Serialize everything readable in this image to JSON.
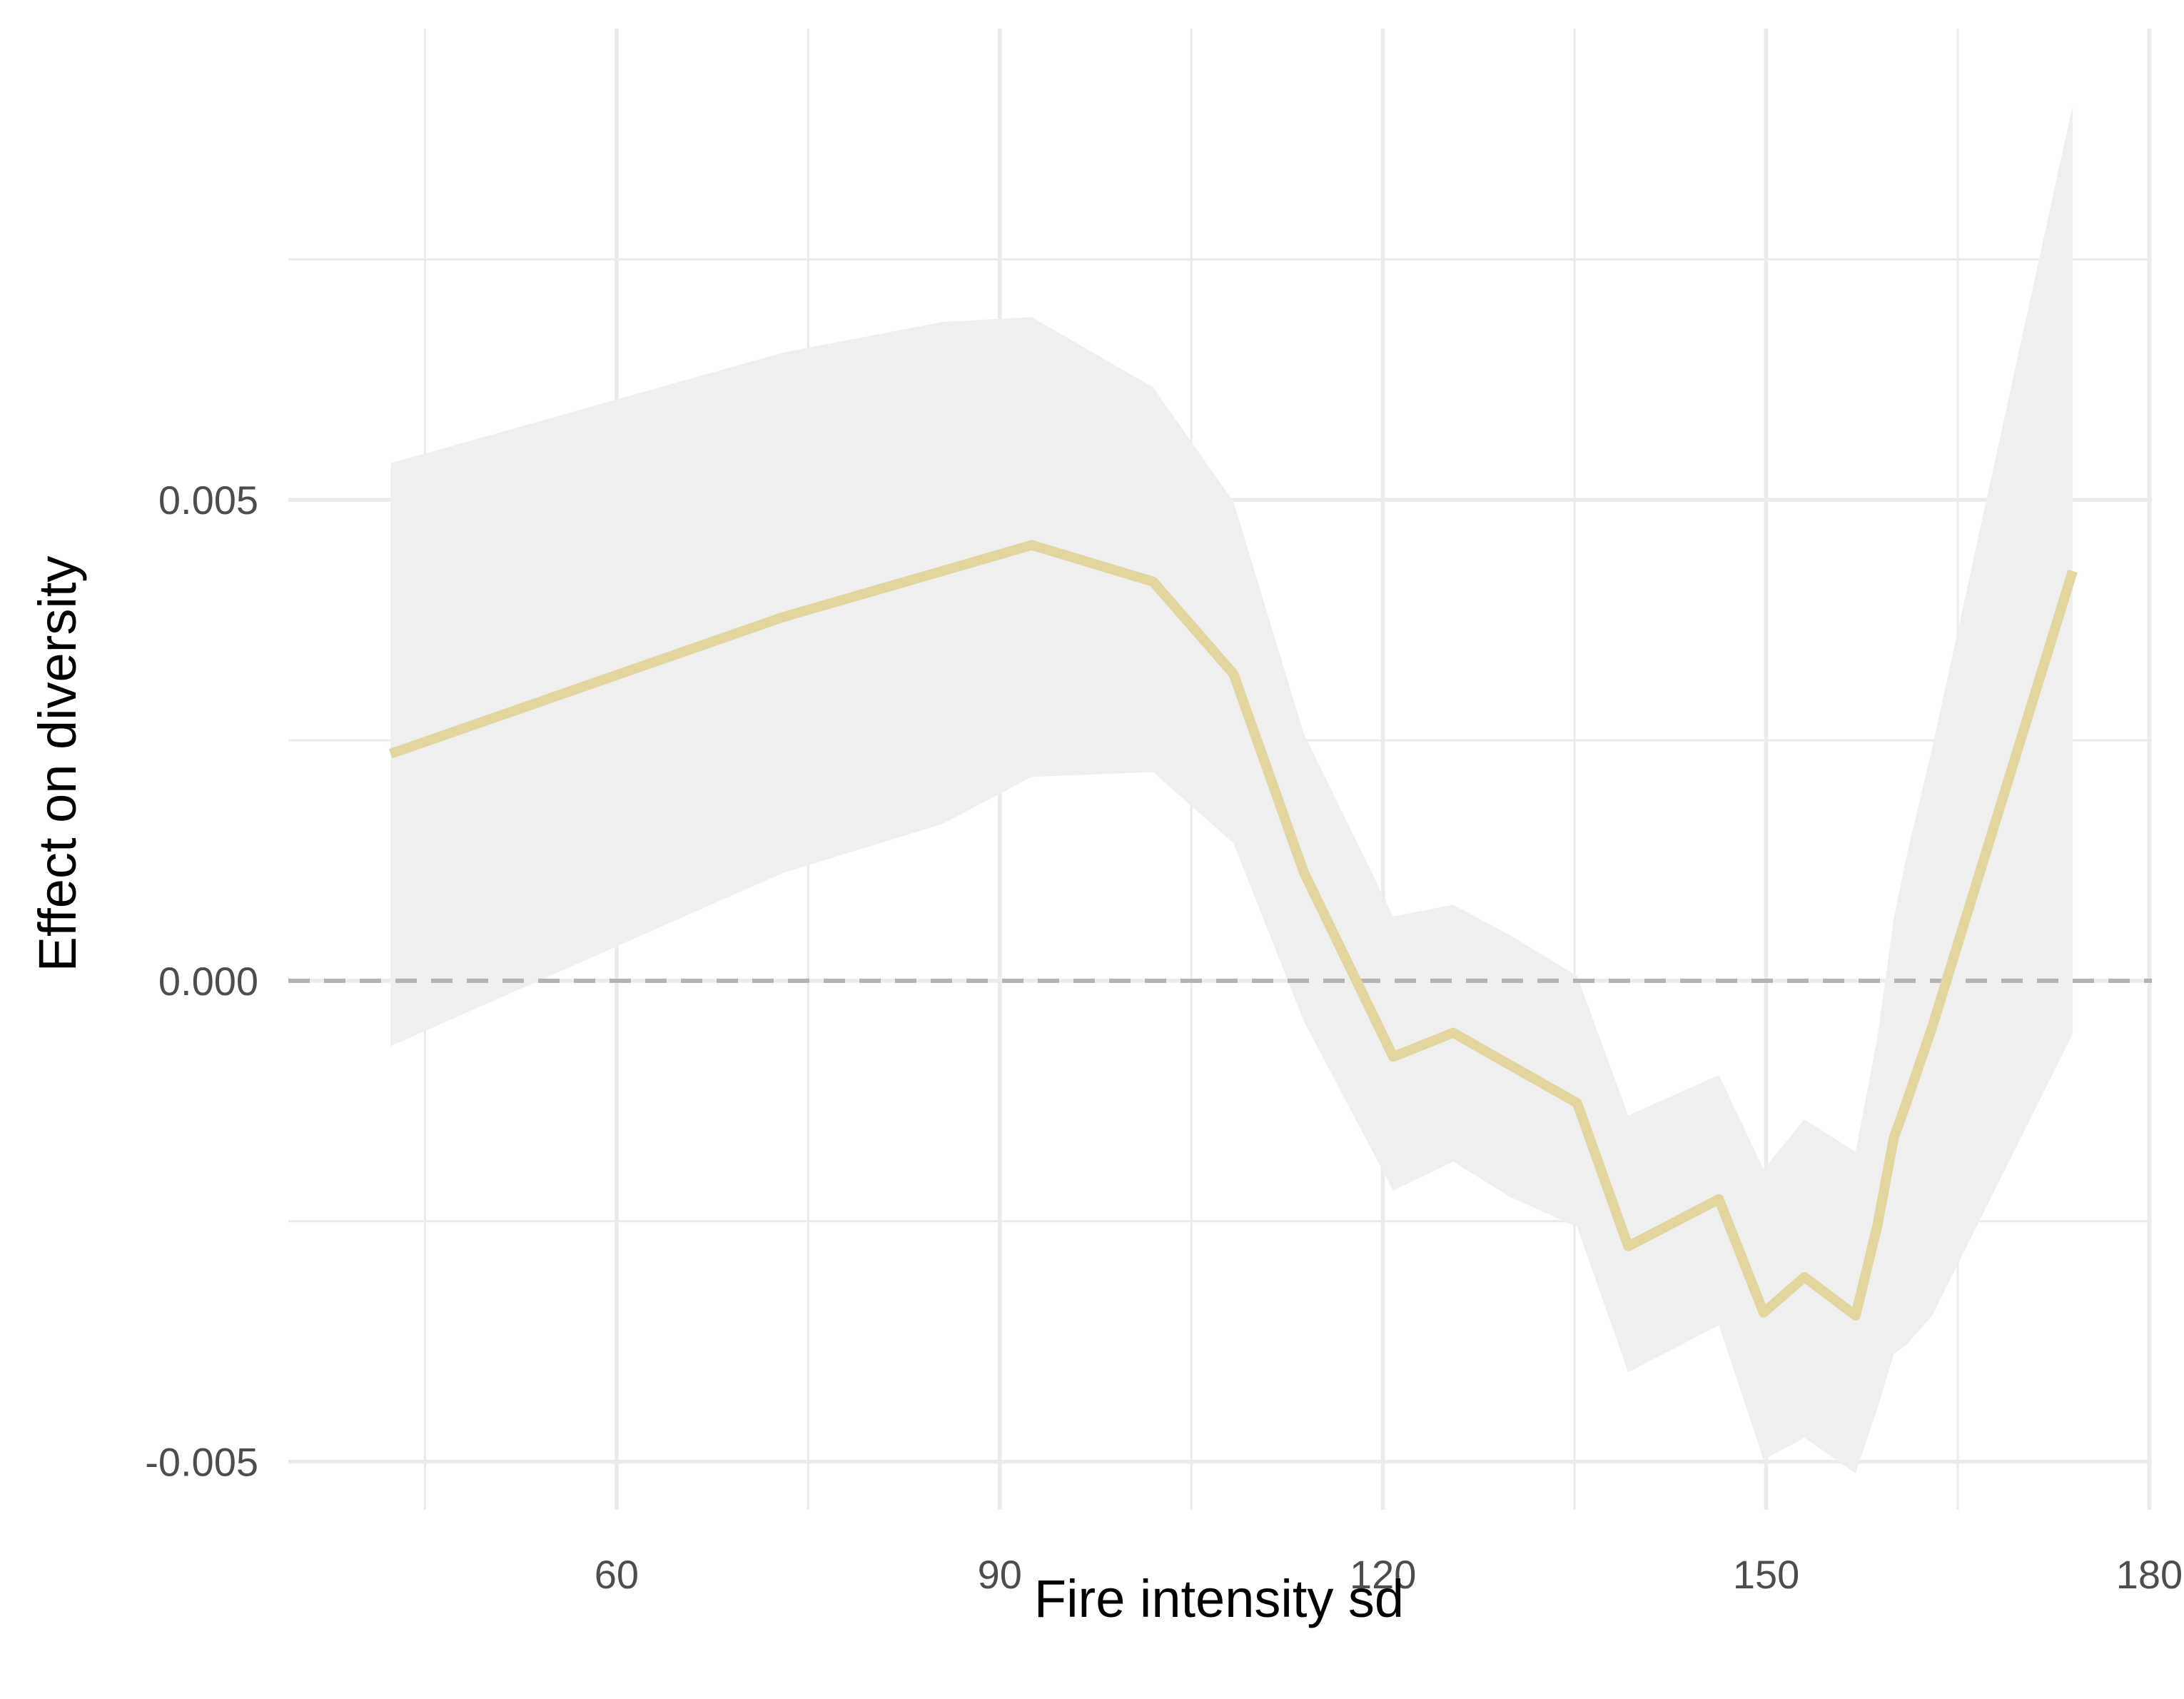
{
  "chart_data": {
    "type": "line",
    "xlabel": "Fire intensity sd",
    "ylabel": "Effect on diversity",
    "xlim": [
      34.3,
      180.2
    ],
    "ylim": [
      -0.0055,
      0.0099
    ],
    "x_ticks": [
      60,
      90,
      120,
      150,
      180
    ],
    "y_ticks": [
      -0.005,
      0.0,
      0.005
    ],
    "y_tick_labels": [
      "-0.005",
      "0.000",
      "0.005"
    ],
    "grid": true,
    "reference_line": {
      "y": 0.0,
      "style": "dashed"
    },
    "series": [
      {
        "x": [
          42.3,
          73,
          85.5,
          92.5,
          102,
          108.3,
          113.8,
          120.8,
          125.5,
          130,
          135.2,
          139.2,
          146.3,
          149.8,
          153,
          157,
          158.7,
          160,
          161,
          163,
          174
        ],
        "y": [
          0.00236,
          0.00378,
          0.00426,
          0.00453,
          0.00415,
          0.00319,
          0.00113,
          -0.00079,
          -0.00054,
          -0.00088,
          -0.00127,
          -0.00276,
          -0.00227,
          -0.00345,
          -0.00308,
          -0.00348,
          -0.00255,
          -0.00163,
          -0.00126,
          -0.00048,
          0.00426
        ],
        "ci_lower": [
          -0.00068,
          0.00112,
          0.00163,
          0.00212,
          0.00217,
          0.00143,
          -0.00042,
          -0.00218,
          -0.00188,
          -0.00225,
          -0.00256,
          -0.00407,
          -0.00358,
          -0.00498,
          -0.00475,
          -0.00512,
          -0.00445,
          -0.00388,
          -0.00378,
          -0.00348,
          -0.00055
        ],
        "ci_upper": [
          0.00538,
          0.00653,
          0.00685,
          0.0069,
          0.00617,
          0.00498,
          0.00257,
          0.00067,
          0.00079,
          0.00047,
          5e-05,
          -0.0014,
          -0.00098,
          -0.00196,
          -0.00144,
          -0.00178,
          -0.0006,
          0.00065,
          0.0013,
          0.00242,
          0.0091
        ],
        "color": "#e2d59d",
        "band_color": "#efefef"
      }
    ],
    "colors": {
      "grid": "#ebebeb",
      "zero_line": "#b3b3b3",
      "tick_text": "#4d4d4d"
    }
  }
}
